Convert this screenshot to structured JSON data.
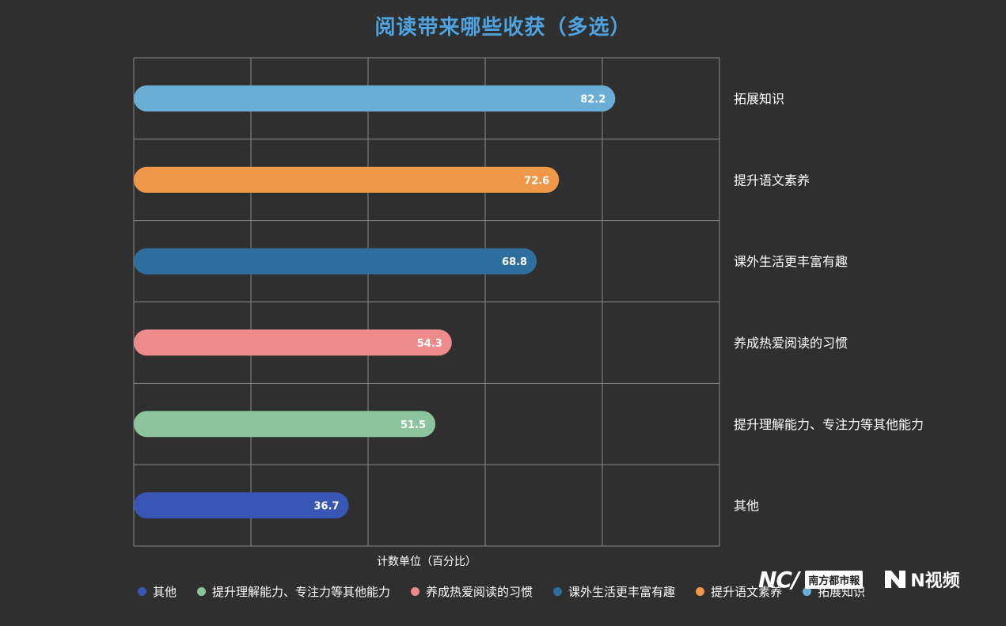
{
  "chart_data": {
    "type": "bar",
    "orientation": "horizontal",
    "title": "阅读带来哪些收获（多选）",
    "xlabel": "计数单位（百分比）",
    "ylabel": "",
    "xlim": [
      0,
      100
    ],
    "grid": true,
    "legend_position": "bottom",
    "categories": [
      "拓展知识",
      "提升语文素养",
      "课外生活更丰富有趣",
      "养成热爱阅读的习惯",
      "提升理解能力、专注力等其他能力",
      "其他"
    ],
    "values": [
      82.2,
      72.6,
      68.8,
      54.3,
      51.5,
      36.7
    ],
    "value_labels": [
      "82.2",
      "72.6",
      "68.8",
      "54.3",
      "51.5",
      "36.7"
    ],
    "colors": [
      "#6aaed6",
      "#f0984a",
      "#2e6e9e",
      "#ec8a8c",
      "#8cc59d",
      "#3a56b4"
    ],
    "legend": [
      {
        "label": "其他",
        "color": "#3a56b4"
      },
      {
        "label": "提升理解能力、专注力等其他能力",
        "color": "#8cc59d"
      },
      {
        "label": "养成热爱阅读的习惯",
        "color": "#ec8a8c"
      },
      {
        "label": "课外生活更丰富有趣",
        "color": "#2e6e9e"
      },
      {
        "label": "提升语文素养",
        "color": "#f0984a"
      },
      {
        "label": "拓展知识",
        "color": "#6aaed6"
      }
    ]
  },
  "branding": {
    "nc": "NC/",
    "paper": "南方都市報",
    "video": "N视频"
  }
}
